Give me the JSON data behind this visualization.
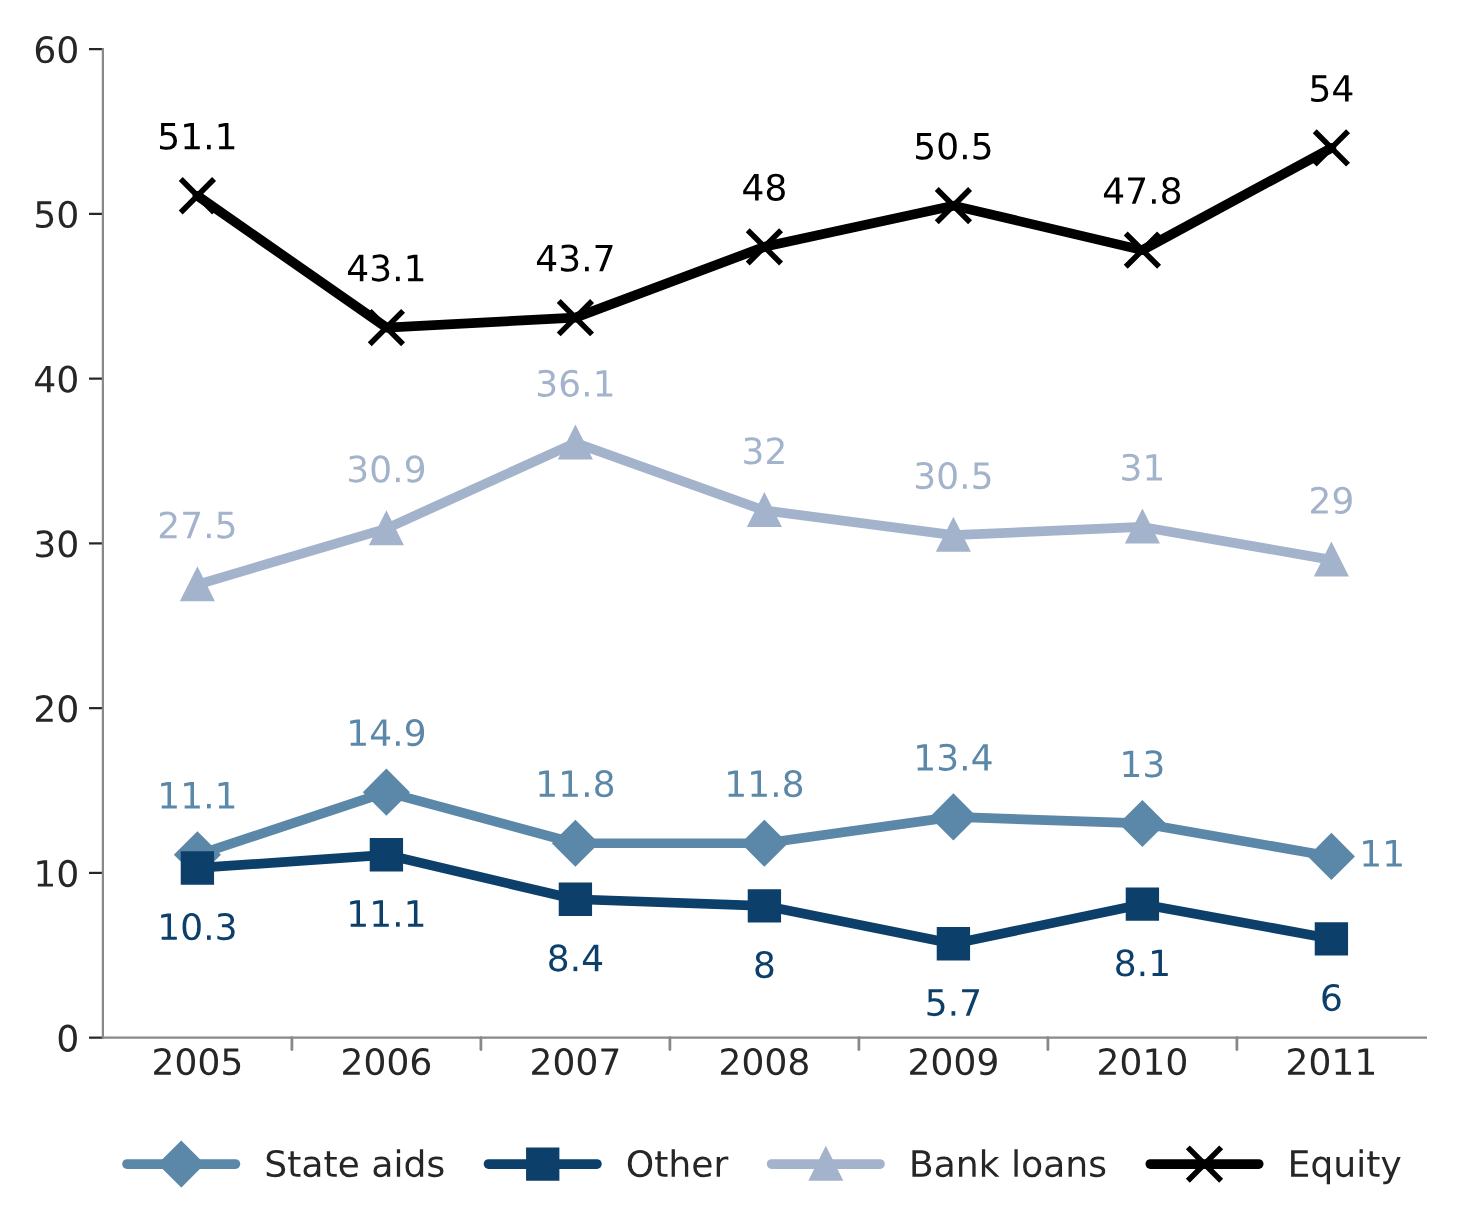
{
  "chart_data": {
    "type": "line",
    "categories": [
      "2005",
      "2006",
      "2007",
      "2008",
      "2009",
      "2010",
      "2011"
    ],
    "series": [
      {
        "name": "State aids",
        "color": "#5b87a8",
        "marker": "diamond",
        "values": [
          11.1,
          14.9,
          11.8,
          11.8,
          13.4,
          13,
          11
        ]
      },
      {
        "name": "Other",
        "color": "#0d3f6b",
        "marker": "square",
        "values": [
          10.3,
          11.1,
          8.4,
          8,
          5.7,
          8.1,
          6
        ]
      },
      {
        "name": "Bank loans",
        "color": "#a4b3cc",
        "marker": "triangle",
        "values": [
          27.5,
          30.9,
          36.1,
          32,
          30.5,
          31,
          29
        ]
      },
      {
        "name": "Equity",
        "color": "#000000",
        "marker": "cross",
        "values": [
          51.1,
          43.1,
          43.7,
          48,
          50.5,
          47.8,
          54
        ]
      }
    ],
    "ylim": [
      0,
      60
    ],
    "yticks": [
      0,
      10,
      20,
      30,
      40,
      50,
      60
    ],
    "grid": false,
    "legend": "bottom",
    "data_labels": true,
    "line_style": "solid"
  }
}
